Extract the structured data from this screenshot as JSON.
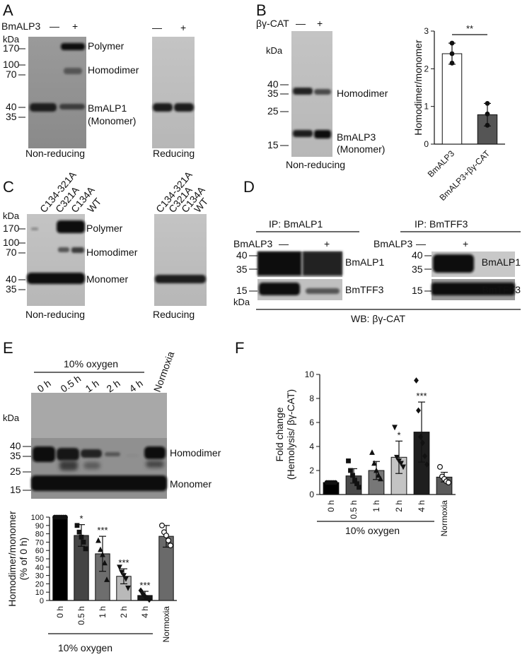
{
  "panels": {
    "A": {
      "label": "A",
      "treatment": "BmALP3",
      "signs": [
        "—",
        "+"
      ],
      "kda": "kDa",
      "markers_left": [
        "170",
        "100",
        "70",
        "40",
        "35"
      ],
      "band_labels": [
        "Polymer",
        "Homodimer",
        "BmALP1",
        "(Monomer)"
      ],
      "caption_left": "Non-reducing",
      "caption_right": "Reducing"
    },
    "B": {
      "label": "B",
      "treatment": "βγ-CAT",
      "signs": [
        "—",
        "+"
      ],
      "kda": "kDa",
      "markers": [
        "40",
        "35",
        "25",
        "15"
      ],
      "band_labels": [
        "Homodimer",
        "BmALP3",
        "(Monomer)"
      ],
      "caption": "Non-reducing",
      "significance": "**"
    },
    "C": {
      "label": "C",
      "lanes": [
        "C134-321A",
        "C321A",
        "C134A",
        "WT"
      ],
      "markers": [
        "kDa",
        "170",
        "100",
        "70",
        "40",
        "35"
      ],
      "band_labels": [
        "Polymer",
        "Homodimer",
        "Monomer"
      ],
      "caption_left": "Non-reducing",
      "caption_right": "Reducing"
    },
    "D": {
      "label": "D",
      "ip_left": "IP: BmALP1",
      "ip_right": "IP: BmTFF3",
      "treatment": "BmALP3",
      "signs": [
        "—",
        "+"
      ],
      "markers": [
        "40",
        "35",
        "15",
        "kDa"
      ],
      "band_labels": [
        "BmALP1",
        "BmTFF3"
      ],
      "wb": "WB: βγ-CAT"
    },
    "E": {
      "label": "E",
      "condition": "10% oxygen",
      "lanes": [
        "0 h",
        "0.5 h",
        "1 h",
        "2 h",
        "4 h",
        "Normoxia"
      ],
      "kda": "kDa",
      "markers": [
        "40",
        "35",
        "25",
        "15"
      ],
      "band_labels": [
        "Homodimer",
        "Monomer"
      ],
      "significance": [
        "*",
        "***",
        "***",
        "***"
      ]
    },
    "F": {
      "label": "F",
      "significance": [
        "*",
        "***"
      ]
    }
  },
  "chart_data": [
    {
      "type": "bar",
      "panel": "B",
      "categories": [
        "BmALP3",
        "BmALP3+βγ-CAT"
      ],
      "values": [
        2.4,
        0.78
      ],
      "errors": [
        0.28,
        0.3
      ],
      "points": [
        [
          2.68,
          2.4,
          2.15
        ],
        [
          1.08,
          0.8,
          0.5
        ]
      ],
      "bar_colors": [
        "#ffffff",
        "#555555"
      ],
      "ylabel": "Homodimer/monomer",
      "ylim": [
        0,
        3
      ],
      "yticks": [
        0,
        1,
        2,
        3
      ],
      "significance": "**"
    },
    {
      "type": "bar",
      "panel": "E",
      "categories": [
        "0 h",
        "0.5 h",
        "1 h",
        "2 h",
        "4 h",
        "Normoxia"
      ],
      "values": [
        100,
        78,
        56,
        29,
        6,
        77
      ],
      "errors": [
        0,
        13,
        21,
        9,
        5,
        13
      ],
      "points": [
        [
          100,
          100,
          100,
          100,
          100,
          100
        ],
        [
          90,
          82,
          76,
          70,
          62
        ],
        [
          72,
          61,
          55,
          45,
          25
        ],
        [
          40,
          34,
          30,
          26,
          15
        ],
        [
          12,
          8,
          5,
          3,
          1
        ],
        [
          90,
          82,
          78,
          72,
          66
        ]
      ],
      "bar_colors": [
        "#000000",
        "#454545",
        "#6e6e6e",
        "#b9b9b9",
        "#1a1a1a",
        "#6a6a6a"
      ],
      "ylabel": "Homodimer/monomer (% of 0 h)",
      "ylabel_lines": [
        "Homodimer/monomer",
        "(% of 0 h)"
      ],
      "ylim": [
        0,
        100
      ],
      "yticks": [
        0,
        10,
        20,
        30,
        40,
        50,
        60,
        70,
        80,
        90,
        100
      ],
      "group_label": "10% oxygen",
      "significance": [
        "",
        "*",
        "***",
        "***",
        "***",
        ""
      ]
    },
    {
      "type": "bar",
      "panel": "F",
      "categories": [
        "0 h",
        "0.5 h",
        "1 h",
        "2 h",
        "4 h",
        "Normoxia"
      ],
      "values": [
        1,
        1.55,
        2.0,
        3.1,
        5.2,
        1.45
      ],
      "errors": [
        0,
        0.6,
        0.75,
        1.35,
        2.5,
        0.4
      ],
      "points": [
        [
          1,
          1,
          1,
          1,
          1
        ],
        [
          2.8,
          2.0,
          1.6,
          1.2,
          0.9,
          0.6
        ],
        [
          3.5,
          2.6,
          2.0,
          1.6,
          1.3
        ],
        [
          5.6,
          3.1,
          2.8,
          2.6,
          2.3
        ],
        [
          9.5,
          7.0,
          4.8,
          4.3,
          3.2,
          2.5
        ],
        [
          2.3,
          1.5,
          1.3,
          1.1,
          1.0
        ]
      ],
      "bar_colors": [
        "#000000",
        "#4a4a4a",
        "#777777",
        "#c4c4c4",
        "#1e1e1e",
        "#5a5a5a"
      ],
      "ylabel": "Fold change (Hemolysis/ βγ-CAT)",
      "ylabel_lines": [
        "Fold change",
        "(Hemolysis/ βγ-CAT)"
      ],
      "ylim": [
        0,
        10
      ],
      "yticks": [
        0,
        2,
        4,
        6,
        8,
        10
      ],
      "group_label": "10% oxygen",
      "significance": [
        "",
        "",
        "",
        "*",
        "***",
        ""
      ]
    }
  ]
}
